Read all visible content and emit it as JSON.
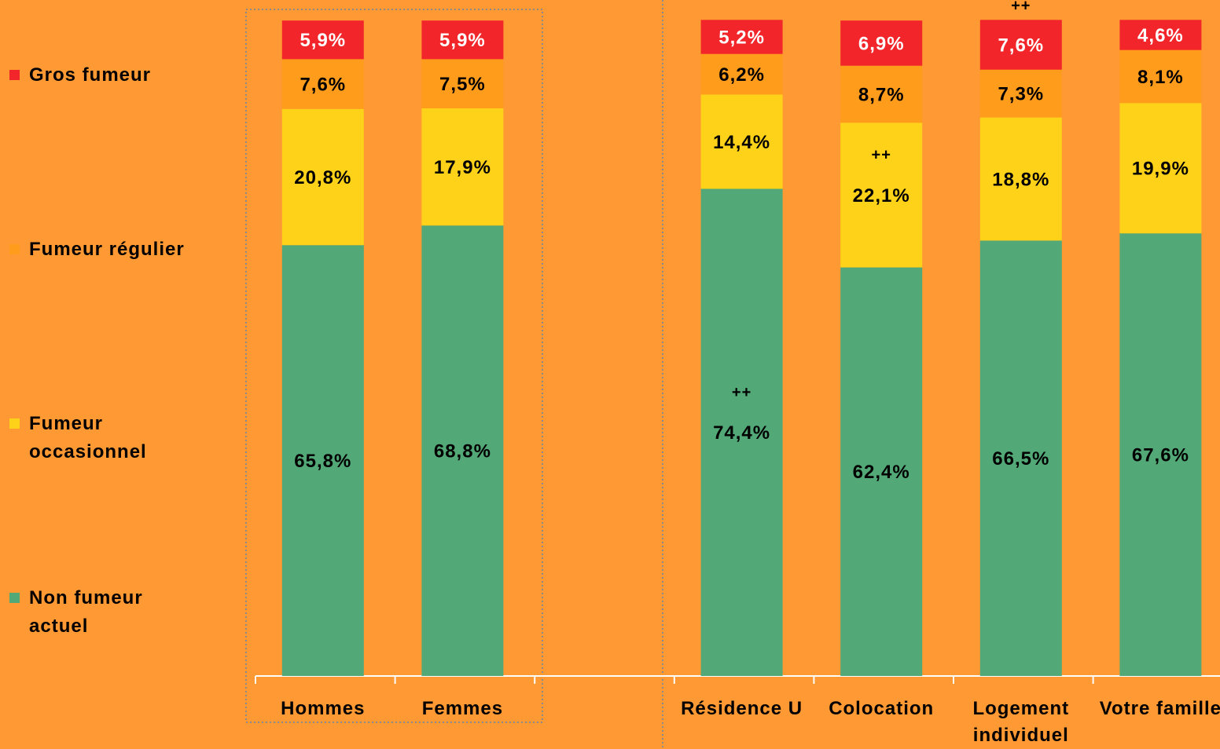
{
  "chart_data": {
    "type": "stacked_bar",
    "categories": [
      "Hommes",
      "Femmes",
      null,
      "Résidence U",
      "Colocation",
      "Logement individuel",
      "Votre famille"
    ],
    "ylim": [
      0,
      100
    ],
    "series": [
      {
        "name": "Non fumeur actuel",
        "color": "#52a876",
        "values": [
          65.8,
          68.8,
          null,
          74.4,
          62.4,
          66.5,
          67.6
        ],
        "value_labels": [
          "65,8%",
          "68,8%",
          null,
          "74,4%",
          "62,4%",
          "66,5%",
          "67,6%"
        ]
      },
      {
        "name": "Fumeur occasionnel",
        "color": "#ffd21a",
        "values": [
          20.8,
          17.9,
          null,
          14.4,
          22.1,
          18.8,
          19.9
        ],
        "value_labels": [
          "20,8%",
          "17,9%",
          null,
          "14,4%",
          "22,1%",
          "18,8%",
          "19,9%"
        ]
      },
      {
        "name": "Fumeur régulier",
        "color": "#ff9c1c",
        "values": [
          7.6,
          7.5,
          null,
          6.2,
          8.7,
          7.3,
          8.1
        ],
        "value_labels": [
          "7,6%",
          "7,5%",
          null,
          "6,2%",
          "8,7%",
          "7,3%",
          "8,1%"
        ]
      },
      {
        "name": "Gros fumeur",
        "color": "#f2262a",
        "values": [
          5.9,
          5.9,
          null,
          5.2,
          6.9,
          7.6,
          4.6
        ],
        "value_labels": [
          "5,9%",
          "5,9%",
          null,
          "5,2%",
          "6,9%",
          "7,6%",
          "4,6%"
        ]
      }
    ],
    "annotations": [
      {
        "text": "++",
        "category_index": 3,
        "series_index": 0
      },
      {
        "text": "++",
        "category_index": 4,
        "series_index": 1
      },
      {
        "text": "++",
        "category_index": 5,
        "series_index": 3
      }
    ]
  }
}
